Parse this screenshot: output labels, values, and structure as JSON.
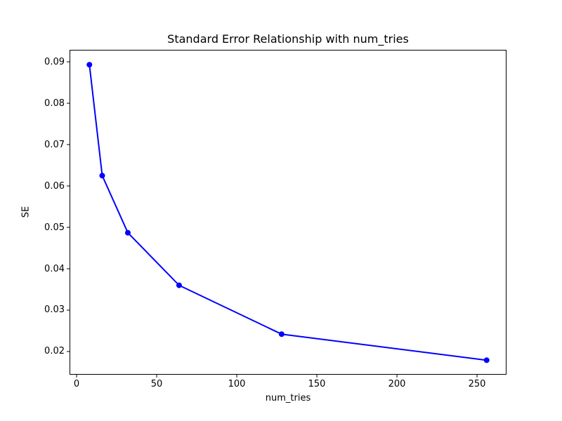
{
  "chart_data": {
    "type": "line",
    "title": "Standard Error Relationship with num_tries",
    "xlabel": "num_tries",
    "ylabel": "SE",
    "x": [
      8,
      16,
      32,
      64,
      128,
      256
    ],
    "y": [
      0.0893,
      0.0625,
      0.0487,
      0.036,
      0.0242,
      0.0179
    ],
    "xticks": [
      0,
      50,
      100,
      150,
      200,
      250
    ],
    "xtick_labels": [
      "0",
      "50",
      "100",
      "150",
      "200",
      "250"
    ],
    "yticks": [
      0.02,
      0.03,
      0.04,
      0.05,
      0.06,
      0.07,
      0.08,
      0.09
    ],
    "ytick_labels": [
      "0.02",
      "0.03",
      "0.04",
      "0.05",
      "0.06",
      "0.07",
      "0.08",
      "0.09"
    ],
    "xlim": [
      -4.4,
      268.4
    ],
    "ylim": [
      0.0144,
      0.0929
    ],
    "line_color": "#0000ff",
    "marker": "circle",
    "axis_color": "#000000",
    "background_color": "#ffffff",
    "grid": false,
    "legend_position": "none"
  }
}
